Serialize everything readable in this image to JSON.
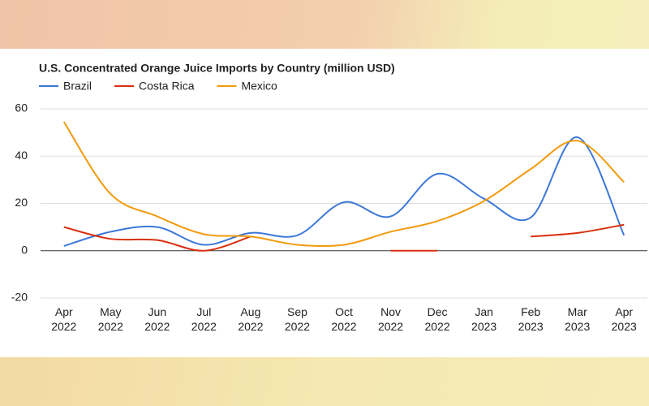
{
  "chart_data": {
    "type": "line",
    "title": "U.S. Concentrated Orange Juice Imports by Country (million USD)",
    "categories": [
      "Apr 2022",
      "May 2022",
      "Jun 2022",
      "Jul 2022",
      "Aug 2022",
      "Sep 2022",
      "Oct 2022",
      "Nov 2022",
      "Dec 2022",
      "Jan 2023",
      "Feb 2023",
      "Mar 2023",
      "Apr 2023"
    ],
    "series": [
      {
        "name": "Brazil",
        "color": "#3c78d8",
        "values": [
          2,
          8,
          10,
          2.5,
          7.5,
          6.5,
          20.5,
          14.5,
          32.5,
          22,
          14,
          48,
          6.5
        ]
      },
      {
        "name": "Costa Rica",
        "color": "#d9300f",
        "values": [
          10,
          5,
          4.5,
          0,
          6,
          null,
          null,
          0,
          0,
          null,
          6,
          7.5,
          11
        ]
      },
      {
        "name": "Mexico",
        "color": "#f29a0c",
        "values": [
          54.5,
          24,
          14.5,
          7,
          6,
          2.5,
          2.5,
          8,
          12.5,
          21,
          34.5,
          46.5,
          29
        ]
      }
    ],
    "ylim": [
      -20,
      60
    ],
    "yticks": [
      -20,
      0,
      20,
      40,
      60
    ],
    "grid": true,
    "legend": "top"
  }
}
